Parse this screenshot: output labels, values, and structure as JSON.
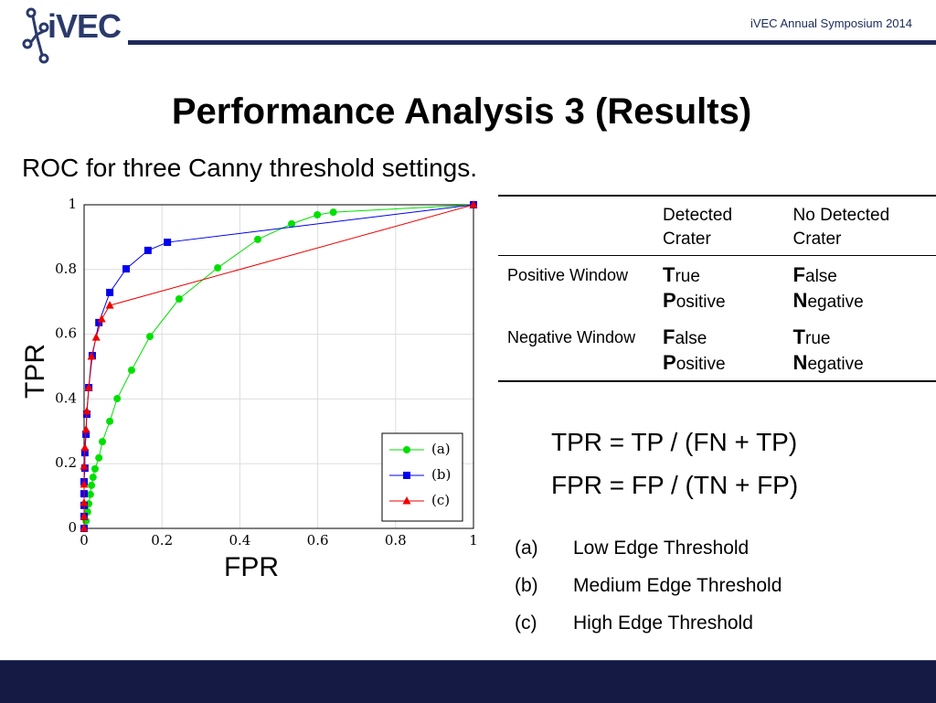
{
  "header": {
    "logo": "iVEC",
    "event": "iVEC Annual Symposium 2014"
  },
  "title": "Performance Analysis 3 (Results)",
  "subtitle": "ROC for three Canny threshold settings.",
  "chart_data": {
    "type": "line",
    "xlabel": "FPR",
    "ylabel": "TPR",
    "xlim": [
      0,
      1
    ],
    "ylim": [
      0,
      1
    ],
    "xticks": [
      0,
      0.2,
      0.4,
      0.6,
      0.8,
      1
    ],
    "yticks": [
      0,
      0.2,
      0.4,
      0.6,
      0.8,
      1
    ],
    "grid": true,
    "legend": "lower right",
    "series": [
      {
        "name": "(a)",
        "color": "#00e000",
        "marker": "circle",
        "x": [
          0,
          0.005,
          0.009,
          0.012,
          0.016,
          0.019,
          0.023,
          0.028,
          0.038,
          0.047,
          0.066,
          0.085,
          0.122,
          0.169,
          0.244,
          0.343,
          0.446,
          0.533,
          0.599,
          0.64,
          1
        ],
        "values": [
          0,
          0.023,
          0.051,
          0.076,
          0.105,
          0.133,
          0.158,
          0.184,
          0.218,
          0.268,
          0.331,
          0.401,
          0.489,
          0.593,
          0.709,
          0.805,
          0.893,
          0.941,
          0.969,
          0.977,
          1
        ]
      },
      {
        "name": "(b)",
        "color": "#0000ee",
        "marker": "square",
        "x": [
          0,
          0,
          0,
          0,
          0,
          0.002,
          0.002,
          0.005,
          0.007,
          0.012,
          0.021,
          0.038,
          0.066,
          0.108,
          0.164,
          0.214,
          1
        ],
        "values": [
          0,
          0.037,
          0.071,
          0.107,
          0.144,
          0.186,
          0.234,
          0.291,
          0.353,
          0.435,
          0.534,
          0.636,
          0.729,
          0.802,
          0.859,
          0.884,
          1
        ]
      },
      {
        "name": "(c)",
        "color": "#ee0000",
        "marker": "triangle",
        "x": [
          0,
          0,
          0,
          0,
          0,
          0.002,
          0.005,
          0.007,
          0.012,
          0.019,
          0.031,
          0.045,
          0.066,
          1
        ],
        "values": [
          0,
          0.037,
          0.079,
          0.136,
          0.192,
          0.249,
          0.305,
          0.362,
          0.435,
          0.531,
          0.59,
          0.647,
          0.689,
          1
        ]
      }
    ]
  },
  "table": {
    "header": [
      "Detected Crater",
      "No Detected Crater"
    ],
    "rows": [
      {
        "label": "Positive Window",
        "cells": [
          [
            [
              "T",
              "rue"
            ],
            [
              "P",
              "ositive"
            ]
          ],
          [
            [
              "F",
              "alse"
            ],
            [
              "N",
              "egative"
            ]
          ]
        ]
      },
      {
        "label": "Negative Window",
        "cells": [
          [
            [
              "F",
              "alse"
            ],
            [
              "P",
              "ositive"
            ]
          ],
          [
            [
              "T",
              "rue"
            ],
            [
              "N",
              "egative"
            ]
          ]
        ]
      }
    ]
  },
  "formulas": [
    "TPR = TP / (FN + TP)",
    "FPR = FP / (TN + FP)"
  ],
  "legend_items": [
    {
      "key": "(a)",
      "text": "Low Edge Threshold"
    },
    {
      "key": "(b)",
      "text": "Medium Edge Threshold"
    },
    {
      "key": "(c)",
      "text": "High Edge Threshold"
    }
  ]
}
